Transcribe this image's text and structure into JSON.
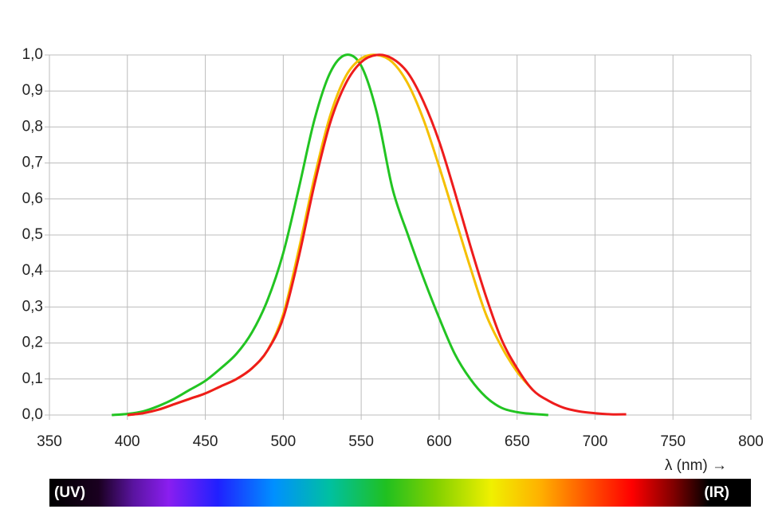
{
  "chart_data": {
    "type": "line",
    "x": [
      390,
      400,
      410,
      420,
      430,
      440,
      450,
      460,
      470,
      480,
      490,
      500,
      510,
      520,
      530,
      540,
      550,
      560,
      570,
      580,
      590,
      600,
      610,
      620,
      630,
      640,
      650,
      660,
      670,
      680,
      690,
      700,
      710,
      720
    ],
    "series": [
      {
        "color": "#22c422",
        "values": [
          0.0,
          0.003,
          0.01,
          0.025,
          0.045,
          0.07,
          0.095,
          0.13,
          0.17,
          0.23,
          0.32,
          0.45,
          0.63,
          0.82,
          0.95,
          1.0,
          0.97,
          0.84,
          0.63,
          0.5,
          0.38,
          0.27,
          0.17,
          0.1,
          0.05,
          0.02,
          0.008,
          0.003,
          0.0,
          null,
          null,
          null,
          null,
          null
        ]
      },
      {
        "color": "#f5c000",
        "values": [
          null,
          0.0,
          0.005,
          0.015,
          0.03,
          0.045,
          0.06,
          0.08,
          0.1,
          0.13,
          0.18,
          0.28,
          0.46,
          0.66,
          0.83,
          0.94,
          0.99,
          1.0,
          0.98,
          0.92,
          0.82,
          0.69,
          0.55,
          0.41,
          0.28,
          0.19,
          0.12,
          0.07,
          null,
          null,
          null,
          null,
          null,
          null
        ]
      },
      {
        "color": "#ee1c1c",
        "values": [
          null,
          0.0,
          0.005,
          0.015,
          0.03,
          0.045,
          0.06,
          0.08,
          0.1,
          0.13,
          0.18,
          0.27,
          0.44,
          0.64,
          0.81,
          0.92,
          0.98,
          1.0,
          0.99,
          0.95,
          0.87,
          0.76,
          0.62,
          0.47,
          0.33,
          0.21,
          0.13,
          0.07,
          0.04,
          0.02,
          0.01,
          0.005,
          0.002,
          0.002
        ]
      }
    ],
    "xlim": [
      350,
      800
    ],
    "ylim": [
      0,
      1
    ],
    "xticks": [
      350,
      400,
      450,
      500,
      550,
      600,
      650,
      700,
      750,
      800
    ],
    "yticks": [
      {
        "value": 0,
        "label": "0,0"
      },
      {
        "value": 0.1,
        "label": "0,1"
      },
      {
        "value": 0.2,
        "label": "0,2"
      },
      {
        "value": 0.3,
        "label": "0,3"
      },
      {
        "value": 0.4,
        "label": "0,4"
      },
      {
        "value": 0.5,
        "label": "0,5"
      },
      {
        "value": 0.6,
        "label": "0,6"
      },
      {
        "value": 0.7,
        "label": "0,7"
      },
      {
        "value": 0.8,
        "label": "0,8"
      },
      {
        "value": 0.9,
        "label": "0,9"
      },
      {
        "value": 1,
        "label": "1,0"
      }
    ],
    "grid": true,
    "x_label": "λ (nm) →",
    "spectrum_left": "(UV)",
    "spectrum_right": "(IR)"
  }
}
